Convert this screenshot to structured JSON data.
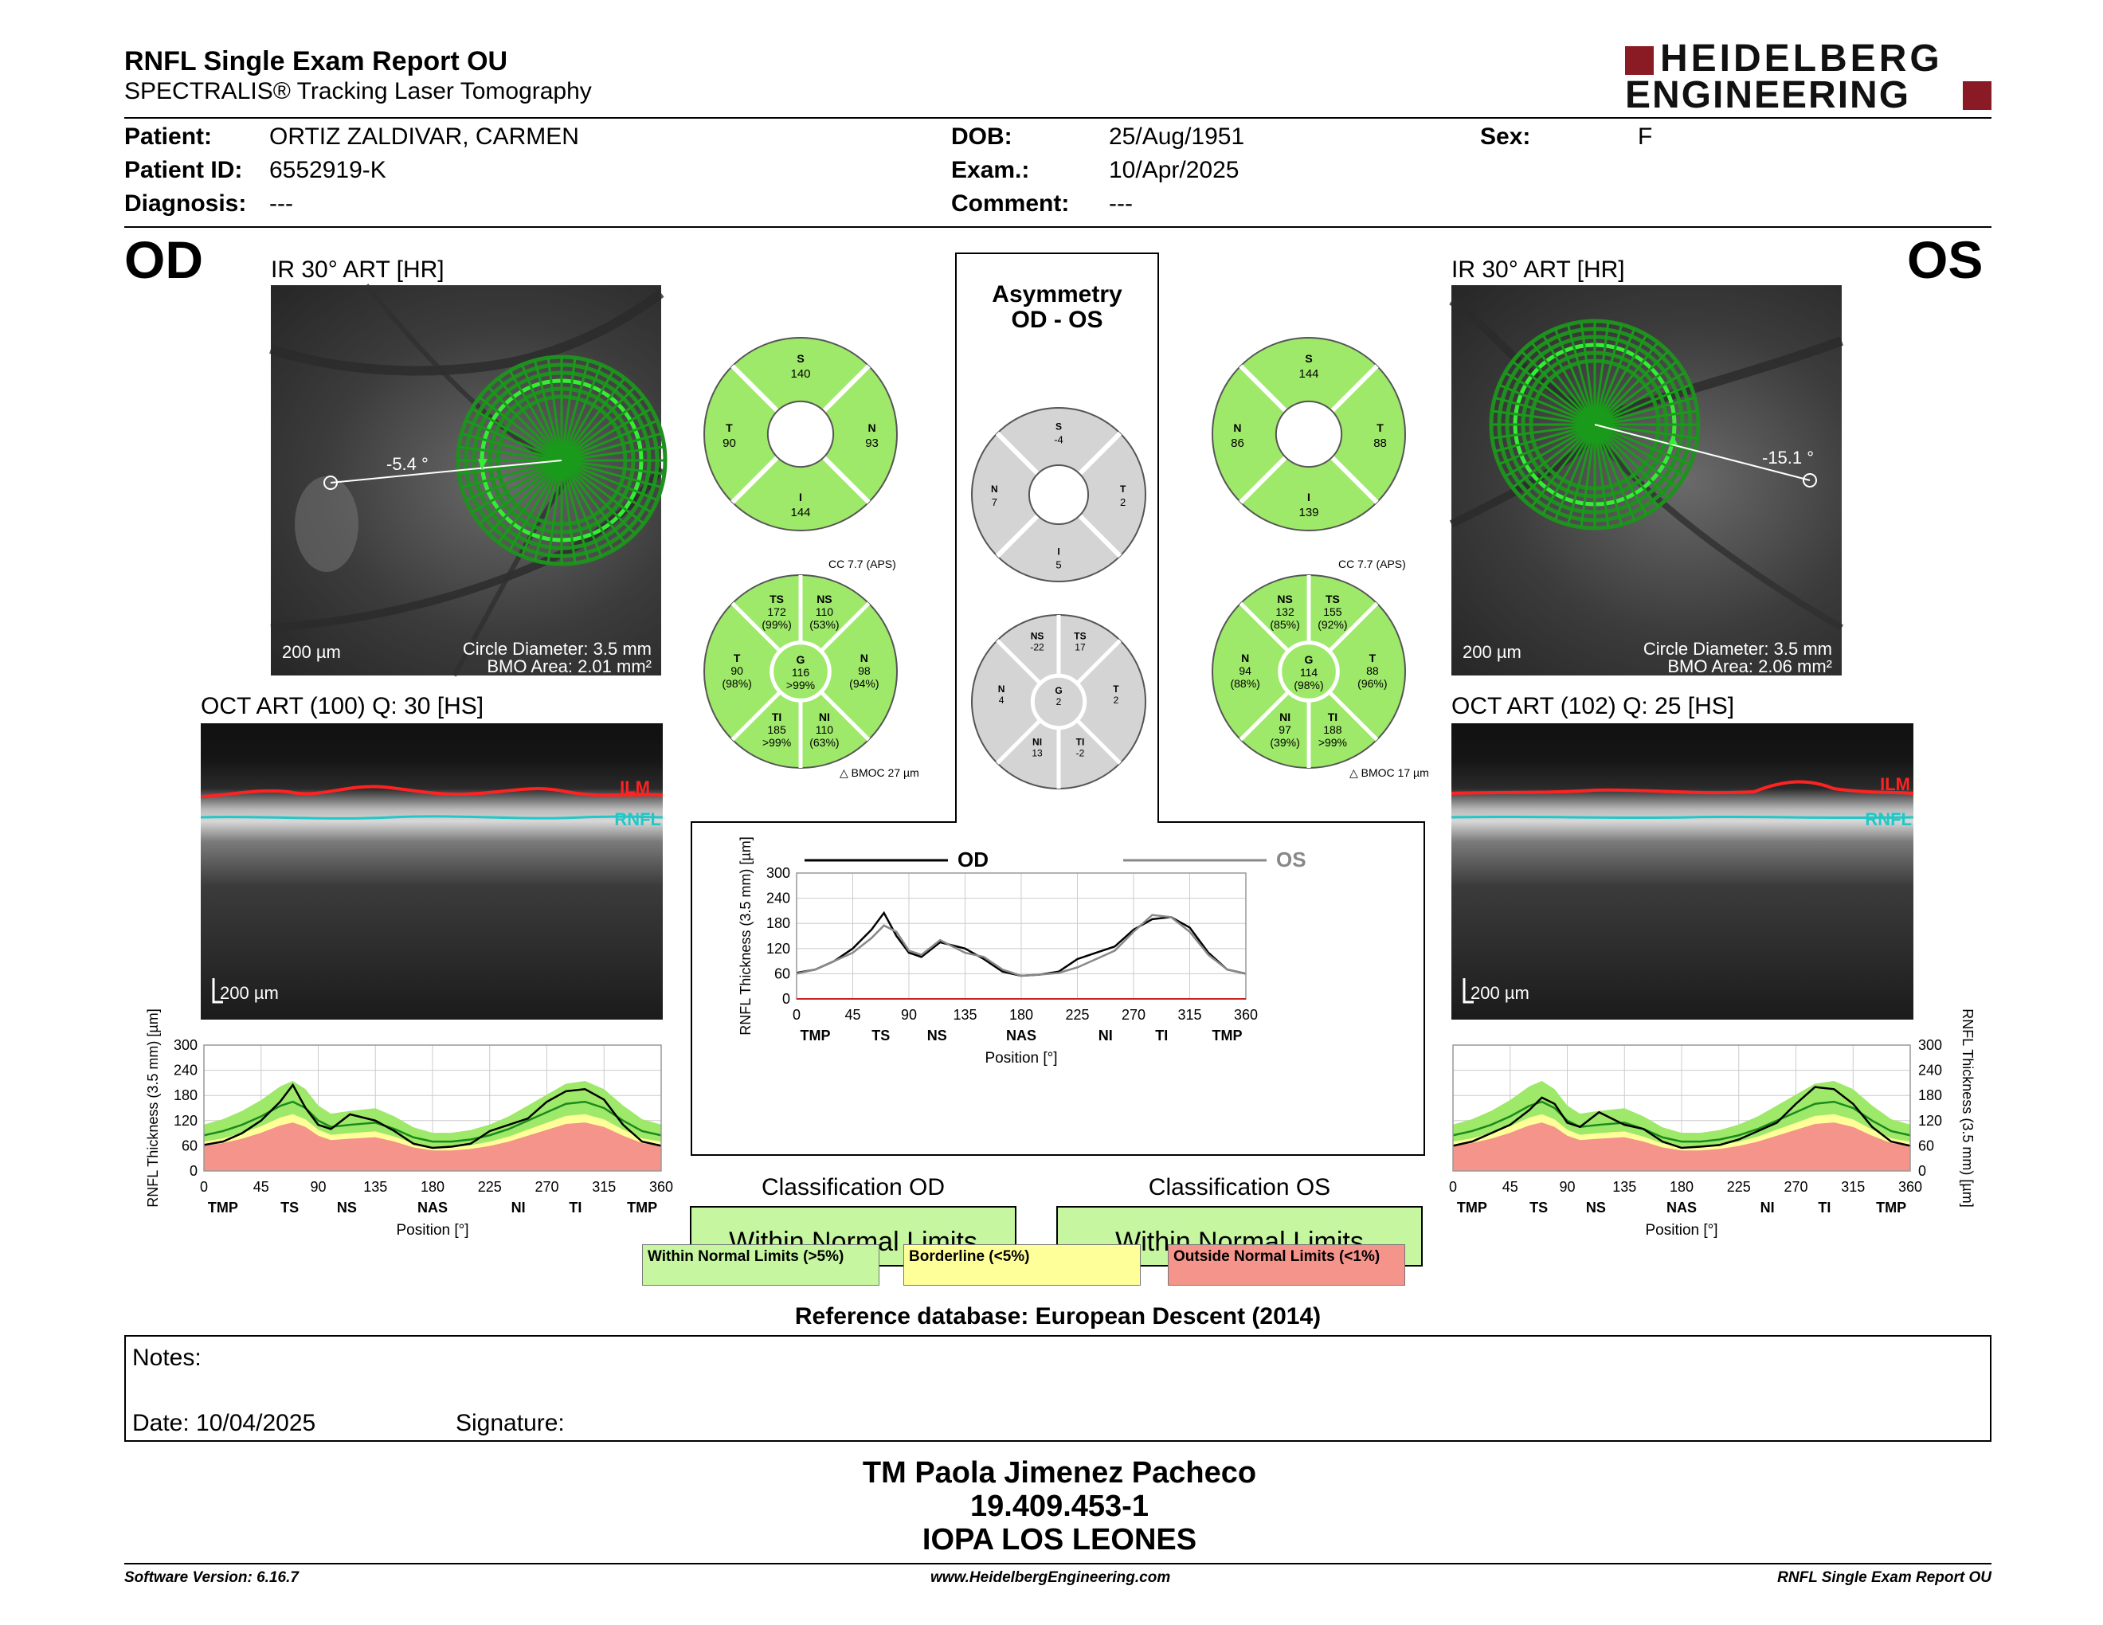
{
  "header": {
    "title": "RNFL Single Exam Report OU",
    "subtitle": "SPECTRALIS® Tracking Laser Tomography",
    "brand_line1": "HEIDELBERG",
    "brand_line2": "ENGINEERING",
    "brand_color": "#8a1a24"
  },
  "patient": {
    "patient_label": "Patient:",
    "patient_value": "ORTIZ ZALDIVAR, CARMEN",
    "id_label": "Patient ID:",
    "id_value": "6552919-K",
    "diagnosis_label": "Diagnosis:",
    "diagnosis_value": "---",
    "dob_label": "DOB:",
    "dob_value": "25/Aug/1951",
    "exam_label": "Exam.:",
    "exam_value": "10/Apr/2025",
    "comment_label": "Comment:",
    "comment_value": "---",
    "sex_label": "Sex:",
    "sex_value": "F"
  },
  "od": {
    "eye": "OD",
    "ir_label": "IR 30° ART [HR]",
    "angle": "-5.4 °",
    "scale": "200 µm",
    "circle_diameter": "Circle Diameter: 3.5 mm",
    "bmo_area": "BMO Area: 2.01 mm²",
    "oct_label": "OCT ART (100) Q: 30 [HS]",
    "oct_scale": "200 µm",
    "ilm": "ILM",
    "rnfl": "RNFL",
    "quad": {
      "S": "140",
      "N": "93",
      "I": "144",
      "T": "90"
    },
    "cc": "CC 7.7 (APS)",
    "bmoc": "BMOC 27 µm",
    "sectors": {
      "TS": [
        "TS",
        "172",
        "(99%)"
      ],
      "NS": [
        "NS",
        "110",
        "(53%)"
      ],
      "T": [
        "T",
        "90",
        "(98%)"
      ],
      "G": [
        "G",
        "116",
        ">99%"
      ],
      "N": [
        "N",
        "98",
        "(94%)"
      ],
      "TI": [
        "TI",
        "185",
        ">99%"
      ],
      "NI": [
        "NI",
        "110",
        "(63%)"
      ]
    },
    "classification_title": "Classification OD",
    "classification": "Within Normal Limits"
  },
  "os": {
    "eye": "OS",
    "ir_label": "IR 30° ART [HR]",
    "angle": "-15.1 °",
    "scale": "200 µm",
    "circle_diameter": "Circle Diameter: 3.5 mm",
    "bmo_area": "BMO Area: 2.06 mm²",
    "oct_label": "OCT ART (102) Q: 25 [HS]",
    "oct_scale": "200 µm",
    "ilm": "ILM",
    "rnfl": "RNFL",
    "quad": {
      "S": "144",
      "N": "86",
      "I": "139",
      "T": "88"
    },
    "cc": "CC 7.7 (APS)",
    "bmoc": "BMOC 17 µm",
    "sectors": {
      "NS": [
        "NS",
        "132",
        "(85%)"
      ],
      "TS": [
        "TS",
        "155",
        "(92%)"
      ],
      "N": [
        "N",
        "94",
        "(88%)"
      ],
      "G": [
        "G",
        "114",
        "(98%)"
      ],
      "T": [
        "T",
        "88",
        "(96%)"
      ],
      "NI": [
        "NI",
        "97",
        "(39%)"
      ],
      "TI": [
        "TI",
        "188",
        ">99%"
      ]
    },
    "classification_title": "Classification OS",
    "classification": "Within Normal Limits"
  },
  "asym": {
    "title1": "Asymmetry",
    "title2": "OD - OS",
    "quad": {
      "S": "-4",
      "N": "7",
      "I": "5",
      "T": "2"
    },
    "sectors": {
      "NS": [
        "NS",
        "-22"
      ],
      "TS": [
        "TS",
        "17"
      ],
      "N": [
        "N",
        "4"
      ],
      "G": [
        "G",
        "2"
      ],
      "T": [
        "T",
        "2"
      ],
      "NI": [
        "NI",
        "13"
      ],
      "TI": [
        "TI",
        "-2"
      ]
    }
  },
  "legend": {
    "normal": "Within Normal Limits (>5%)",
    "borderline": "Borderline (<5%)",
    "outside": "Outside Normal Limits (<1%)"
  },
  "colors": {
    "normal": "#c6f6a0",
    "borderline": "#ffff9a",
    "outside": "#f4948a",
    "normal_green": "#9ee86a",
    "gray_sector": "#d4d4d4",
    "circle_green": "#22dd22"
  },
  "reference_db": "Reference database: European Descent (2014)",
  "notes": {
    "notes_label": "Notes:",
    "date_label": "Date: 10/04/2025",
    "signature_label": "Signature:"
  },
  "signer": {
    "name": "TM Paola Jimenez Pacheco",
    "rut": "19.409.453-1",
    "institution": "IOPA LOS LEONES"
  },
  "footer": {
    "software": "Software Version: 6.16.7",
    "website": "www.HeidelbergEngineering.com",
    "report": "RNFL Single Exam Report OU"
  },
  "chart_data": [
    {
      "type": "line",
      "name": "od-profile",
      "x": [
        0,
        15,
        30,
        45,
        60,
        70,
        80,
        90,
        100,
        115,
        135,
        150,
        165,
        180,
        195,
        210,
        225,
        240,
        255,
        270,
        285,
        300,
        315,
        330,
        345,
        360
      ],
      "series": [
        {
          "values": [
            62,
            70,
            90,
            120,
            165,
            205,
            150,
            110,
            100,
            135,
            120,
            95,
            65,
            55,
            58,
            65,
            95,
            110,
            125,
            165,
            190,
            195,
            170,
            110,
            70,
            60
          ]
        }
      ],
      "normal_mean": [
        85,
        95,
        110,
        130,
        155,
        165,
        150,
        120,
        105,
        110,
        115,
        100,
        80,
        70,
        70,
        75,
        85,
        100,
        120,
        140,
        160,
        165,
        150,
        120,
        95,
        85
      ],
      "ticks": [
        0,
        45,
        90,
        135,
        180,
        225,
        270,
        315,
        360
      ],
      "tick_sectors": [
        "TMP",
        "TS",
        "NS",
        "NAS",
        "NI",
        "TI",
        "TMP"
      ],
      "ylabel": "RNFL Thickness (3.5 mm) [µm]",
      "xlabel": "Position [°]",
      "ylim": [
        0,
        300
      ],
      "yticks": [
        0,
        60,
        120,
        180,
        240,
        300
      ]
    },
    {
      "type": "line",
      "name": "os-profile",
      "x": [
        0,
        15,
        30,
        45,
        60,
        70,
        80,
        90,
        100,
        115,
        135,
        150,
        165,
        180,
        195,
        210,
        225,
        240,
        255,
        270,
        285,
        300,
        315,
        330,
        345,
        360
      ],
      "series": [
        {
          "values": [
            60,
            70,
            90,
            110,
            145,
            175,
            160,
            115,
            105,
            140,
            110,
            100,
            70,
            55,
            58,
            62,
            75,
            95,
            115,
            160,
            200,
            195,
            160,
            105,
            70,
            60
          ]
        }
      ],
      "normal_mean": [
        85,
        95,
        110,
        130,
        155,
        165,
        150,
        120,
        105,
        110,
        115,
        100,
        80,
        70,
        70,
        75,
        85,
        100,
        120,
        140,
        160,
        165,
        150,
        120,
        95,
        85
      ],
      "ticks": [
        0,
        45,
        90,
        135,
        180,
        225,
        270,
        315,
        360
      ],
      "tick_sectors": [
        "TMP",
        "TS",
        "NS",
        "NAS",
        "NI",
        "TI",
        "TMP"
      ],
      "ylabel": "RNFL Thickness (3.5 mm) [µm]",
      "xlabel": "Position [°]",
      "ylim": [
        0,
        300
      ],
      "yticks": [
        0,
        60,
        120,
        180,
        240,
        300
      ]
    },
    {
      "type": "line",
      "name": "comparison",
      "x": [
        0,
        15,
        30,
        45,
        60,
        70,
        80,
        90,
        100,
        115,
        135,
        150,
        165,
        180,
        195,
        210,
        225,
        240,
        255,
        270,
        285,
        300,
        315,
        330,
        345,
        360
      ],
      "series": [
        {
          "name": "OD",
          "values": [
            62,
            70,
            90,
            120,
            165,
            205,
            150,
            110,
            100,
            135,
            120,
            95,
            65,
            55,
            58,
            65,
            95,
            110,
            125,
            165,
            190,
            195,
            170,
            110,
            70,
            60
          ]
        },
        {
          "name": "OS",
          "values": [
            60,
            70,
            90,
            110,
            145,
            175,
            160,
            115,
            105,
            140,
            110,
            100,
            70,
            55,
            58,
            62,
            75,
            95,
            115,
            160,
            200,
            195,
            160,
            105,
            70,
            60
          ]
        }
      ],
      "ticks": [
        0,
        45,
        90,
        135,
        180,
        225,
        270,
        315,
        360
      ],
      "tick_sectors": [
        "TMP",
        "TS",
        "NS",
        "NAS",
        "NI",
        "TI",
        "TMP"
      ],
      "ylabel": "RNFL Thickness (3.5 mm) [µm]",
      "xlabel": "Position [°]",
      "ylim": [
        0,
        300
      ],
      "yticks": [
        0,
        60,
        120,
        180,
        240,
        300
      ]
    }
  ]
}
